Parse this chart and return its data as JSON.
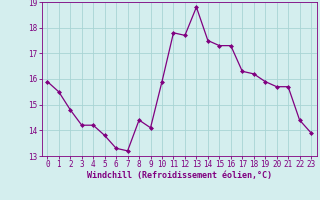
{
  "x": [
    0,
    1,
    2,
    3,
    4,
    5,
    6,
    7,
    8,
    9,
    10,
    11,
    12,
    13,
    14,
    15,
    16,
    17,
    18,
    19,
    20,
    21,
    22,
    23
  ],
  "y": [
    15.9,
    15.5,
    14.8,
    14.2,
    14.2,
    13.8,
    13.3,
    13.2,
    14.4,
    14.1,
    15.9,
    17.8,
    17.7,
    18.8,
    17.5,
    17.3,
    17.3,
    16.3,
    16.2,
    15.9,
    15.7,
    15.7,
    14.4,
    13.9
  ],
  "line_color": "#800080",
  "marker": "D",
  "marker_size": 2.0,
  "linewidth": 0.9,
  "bg_color": "#d4eeee",
  "grid_color": "#a8d4d4",
  "xlabel": "Windchill (Refroidissement éolien,°C)",
  "xlabel_color": "#800080",
  "tick_color": "#800080",
  "spine_color": "#800080",
  "xlim": [
    -0.5,
    23.5
  ],
  "ylim": [
    13.0,
    19.0
  ],
  "yticks": [
    13,
    14,
    15,
    16,
    17,
    18,
    19
  ],
  "xticks": [
    0,
    1,
    2,
    3,
    4,
    5,
    6,
    7,
    8,
    9,
    10,
    11,
    12,
    13,
    14,
    15,
    16,
    17,
    18,
    19,
    20,
    21,
    22,
    23
  ],
  "figsize": [
    3.2,
    2.0
  ],
  "dpi": 100,
  "tick_fontsize": 5.5,
  "xlabel_fontsize": 6.0
}
